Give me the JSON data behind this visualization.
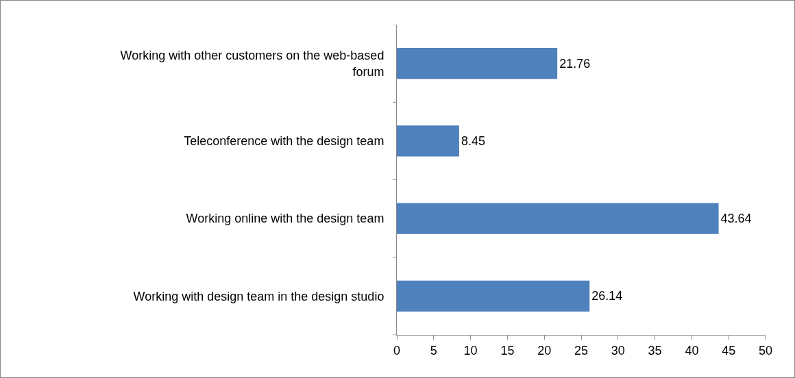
{
  "chart_data": {
    "type": "bar",
    "orientation": "horizontal",
    "categories": [
      "Working with other customers on the web-based forum",
      "Teleconference with the design team",
      "Working online with the design team",
      "Working with design team in the design studio"
    ],
    "values": [
      21.76,
      8.45,
      43.64,
      26.14
    ],
    "color": "#4f81bd",
    "xlim": [
      0,
      50
    ],
    "xticks": [
      0,
      5,
      10,
      15,
      20,
      25,
      30,
      35,
      40,
      45,
      50
    ],
    "grid": false,
    "data_labels": true
  }
}
